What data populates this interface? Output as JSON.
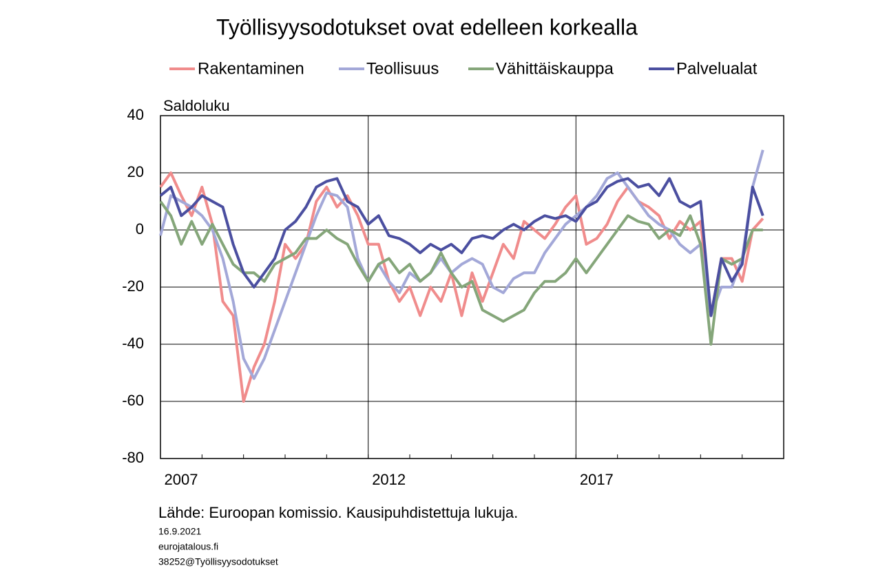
{
  "chart_data": {
    "type": "line",
    "title": "Työllisyysodotukset ovat edelleen korkealla",
    "y_label": "Saldoluku",
    "source": "Lähde: Euroopan komissio. Kausipuhdistettuja lukuja.",
    "date": "16.9.2021",
    "website": "eurojatalous.fi",
    "code": "38252@Työllisyysodotukset",
    "legend": "top",
    "grid": true,
    "xlim": [
      2007,
      2022
    ],
    "xticks": [
      2007,
      2012,
      2017
    ],
    "ylim": [
      -80,
      40
    ],
    "yticks": [
      -80,
      -60,
      -40,
      -20,
      0,
      20,
      40
    ],
    "x": [
      2007,
      2007.25,
      2007.5,
      2007.75,
      2008,
      2008.25,
      2008.5,
      2008.75,
      2009,
      2009.25,
      2009.5,
      2009.75,
      2010,
      2010.25,
      2010.5,
      2010.75,
      2011,
      2011.25,
      2011.5,
      2011.75,
      2012,
      2012.25,
      2012.5,
      2012.75,
      2013,
      2013.25,
      2013.5,
      2013.75,
      2014,
      2014.25,
      2014.5,
      2014.75,
      2015,
      2015.25,
      2015.5,
      2015.75,
      2016,
      2016.25,
      2016.5,
      2016.75,
      2017,
      2017.25,
      2017.5,
      2017.75,
      2018,
      2018.25,
      2018.5,
      2018.75,
      2019,
      2019.25,
      2019.5,
      2019.75,
      2020,
      2020.25,
      2020.5,
      2020.75,
      2021,
      2021.25,
      2021.5
    ],
    "series": [
      {
        "name": "Rakentaminen",
        "color": "#f08c8c",
        "values": [
          15,
          20,
          12,
          5,
          15,
          2,
          -25,
          -30,
          -60,
          -48,
          -40,
          -25,
          -5,
          -10,
          -5,
          10,
          15,
          8,
          12,
          5,
          -5,
          -5,
          -18,
          -25,
          -20,
          -30,
          -20,
          -25,
          -15,
          -30,
          -15,
          -25,
          -15,
          -5,
          -10,
          3,
          0,
          -3,
          2,
          8,
          12,
          -5,
          -3,
          2,
          10,
          15,
          10,
          8,
          5,
          -3,
          3,
          0,
          3,
          -30,
          -10,
          -10,
          -18,
          0,
          4
        ]
      },
      {
        "name": "Teollisuus",
        "color": "#a3a8d8",
        "values": [
          -2,
          12,
          10,
          8,
          5,
          0,
          -10,
          -25,
          -45,
          -52,
          -45,
          -35,
          -25,
          -15,
          -5,
          5,
          13,
          12,
          8,
          -10,
          -18,
          -12,
          -18,
          -22,
          -15,
          -18,
          -15,
          -10,
          -15,
          -12,
          -10,
          -12,
          -20,
          -22,
          -17,
          -15,
          -15,
          -8,
          -3,
          2,
          5,
          8,
          12,
          18,
          20,
          15,
          10,
          5,
          2,
          0,
          -5,
          -8,
          -5,
          -30,
          -20,
          -20,
          -10,
          15,
          28
        ]
      },
      {
        "name": "Vähittäiskauppa",
        "color": "#85a67a",
        "values": [
          10,
          5,
          -5,
          3,
          -5,
          2,
          -5,
          -12,
          -15,
          -15,
          -18,
          -12,
          -10,
          -8,
          -3,
          -3,
          0,
          -3,
          -5,
          -12,
          -18,
          -12,
          -10,
          -15,
          -12,
          -18,
          -15,
          -8,
          -15,
          -20,
          -18,
          -28,
          -30,
          -32,
          -30,
          -28,
          -22,
          -18,
          -18,
          -15,
          -10,
          -15,
          -10,
          -5,
          0,
          5,
          3,
          2,
          -3,
          0,
          -2,
          5,
          -5,
          -40,
          -10,
          -12,
          -10,
          0,
          0
        ]
      },
      {
        "name": "Palvelualat",
        "color": "#4b4fa0",
        "values": [
          12,
          15,
          5,
          8,
          12,
          10,
          8,
          -5,
          -15,
          -20,
          -15,
          -10,
          0,
          3,
          8,
          15,
          17,
          18,
          10,
          8,
          2,
          5,
          -2,
          -3,
          -5,
          -8,
          -5,
          -7,
          -5,
          -8,
          -3,
          -2,
          -3,
          0,
          2,
          0,
          3,
          5,
          4,
          5,
          3,
          8,
          10,
          15,
          17,
          18,
          15,
          16,
          12,
          18,
          10,
          8,
          10,
          -30,
          -10,
          -18,
          -12,
          15,
          5
        ]
      }
    ]
  }
}
